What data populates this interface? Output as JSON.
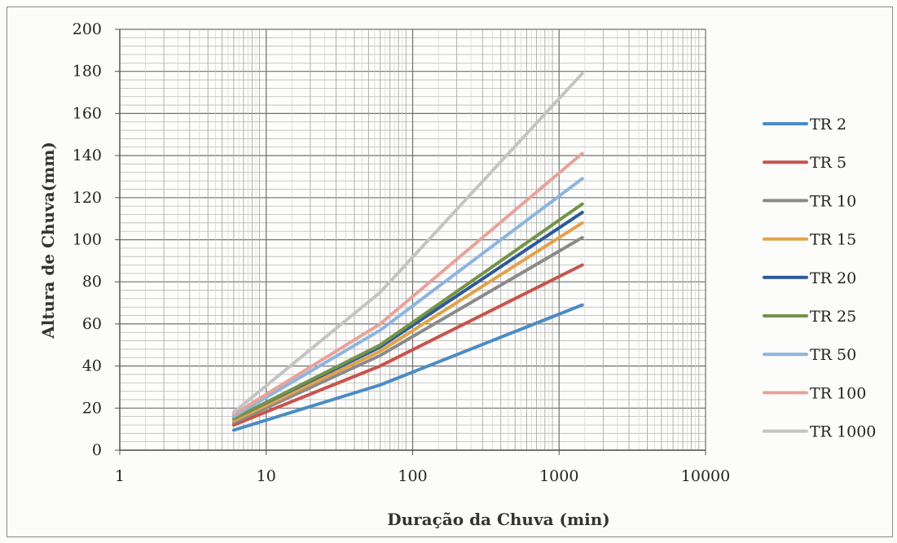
{
  "chart_data": {
    "type": "line",
    "xlabel": "Duração da Chuva (min)",
    "ylabel": "Altura de Chuva(mm)",
    "x_scale": "log",
    "xlim": [
      1,
      10000
    ],
    "ylim": [
      0,
      200
    ],
    "x_ticks": [
      "1",
      "10",
      "100",
      "1000",
      "10000"
    ],
    "y_ticks": [
      "0",
      "20",
      "40",
      "60",
      "80",
      "100",
      "120",
      "140",
      "160",
      "180",
      "200"
    ],
    "grid": true,
    "legend_position": "right",
    "x": [
      6,
      60,
      1440
    ],
    "series": [
      {
        "name": "TR 2",
        "color": "#4a8cc4",
        "values": [
          9.5,
          31,
          69
        ]
      },
      {
        "name": "TR 5",
        "color": "#c9534d",
        "values": [
          12,
          40,
          88
        ]
      },
      {
        "name": "TR 10",
        "color": "#8a8a8a",
        "values": [
          13,
          45,
          101
        ]
      },
      {
        "name": "TR 15",
        "color": "#e2a24a",
        "values": [
          14,
          47,
          108
        ]
      },
      {
        "name": "TR 20",
        "color": "#2c5a96",
        "values": [
          15,
          49,
          113
        ]
      },
      {
        "name": "TR 25",
        "color": "#74934a",
        "values": [
          15,
          50,
          117
        ]
      },
      {
        "name": "TR 50",
        "color": "#8db4e0",
        "values": [
          16,
          57,
          129
        ]
      },
      {
        "name": "TR 100",
        "color": "#e8a39a",
        "values": [
          17,
          60,
          141
        ]
      },
      {
        "name": "TR 1000",
        "color": "#c4c4c4",
        "values": [
          18,
          75,
          179
        ]
      }
    ]
  }
}
